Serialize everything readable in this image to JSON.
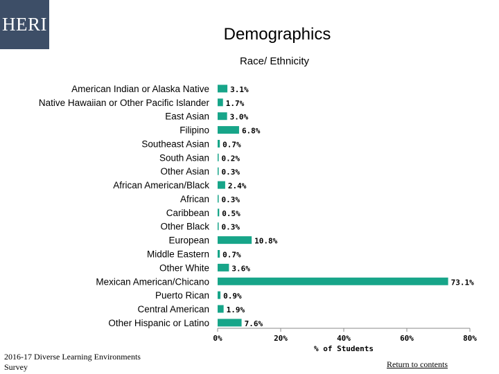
{
  "header": {
    "logo_text": "HERI",
    "title": "Demographics"
  },
  "footer": {
    "source": "2016-17 Diverse Learning Environments Survey",
    "return_link": "Return to contents"
  },
  "colors": {
    "bar": "#17a589",
    "logo_bg": "#3d4e67"
  },
  "chart_data": {
    "type": "bar",
    "orientation": "horizontal",
    "title": "Race/ Ethnicity",
    "xlabel": "% of Students",
    "ylabel": "",
    "xlim": [
      0,
      80
    ],
    "xticks": [
      "0%",
      "20%",
      "40%",
      "60%",
      "80%"
    ],
    "categories": [
      "American Indian or Alaska Native",
      "Native Hawaiian or Other Pacific Islander",
      "East Asian",
      "Filipino",
      "Southeast Asian",
      "South Asian",
      "Other Asian",
      "African American/Black",
      "African",
      "Caribbean",
      "Other Black",
      "European",
      "Middle Eastern",
      "Other White",
      "Mexican American/Chicano",
      "Puerto Rican",
      "Central American",
      "Other Hispanic or Latino"
    ],
    "values": [
      3.1,
      1.7,
      3.0,
      6.8,
      0.7,
      0.2,
      0.3,
      2.4,
      0.3,
      0.5,
      0.3,
      10.8,
      0.7,
      3.6,
      73.1,
      0.9,
      1.9,
      7.6
    ],
    "value_labels": [
      "3.1%",
      "1.7%",
      "3.0%",
      "6.8%",
      "0.7%",
      "0.2%",
      "0.3%",
      "2.4%",
      "0.3%",
      "0.5%",
      "0.3%",
      "10.8%",
      "0.7%",
      "3.6%",
      "73.1%",
      "0.9%",
      "1.9%",
      "7.6%"
    ]
  }
}
